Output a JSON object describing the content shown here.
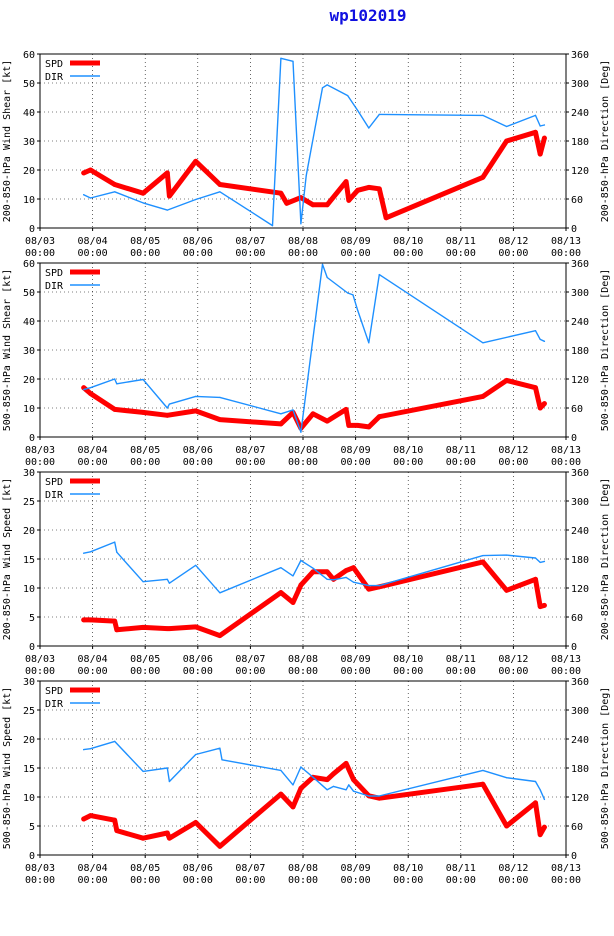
{
  "title": "wp102019",
  "colors": {
    "spd": "#ff0000",
    "dir": "#1e90ff",
    "axis": "#000000",
    "grid": "#000000",
    "title": "#1010e0"
  },
  "x_axis": {
    "ticks": [
      {
        "top": "08/03",
        "bottom": "00:00"
      },
      {
        "top": "08/04",
        "bottom": "00:00"
      },
      {
        "top": "08/05",
        "bottom": "00:00"
      },
      {
        "top": "08/06",
        "bottom": "00:00"
      },
      {
        "top": "08/07",
        "bottom": "00:00"
      },
      {
        "top": "08/08",
        "bottom": "00:00"
      },
      {
        "top": "08/09",
        "bottom": "00:00"
      },
      {
        "top": "08/10",
        "bottom": "00:00"
      },
      {
        "top": "08/11",
        "bottom": "00:00"
      },
      {
        "top": "08/12",
        "bottom": "00:00"
      },
      {
        "top": "08/13",
        "bottom": "00:00"
      }
    ],
    "range_days": [
      0,
      10
    ]
  },
  "chart_data": [
    {
      "type": "line",
      "ylabel_left": "200-850-hPa Wind Shear [kt]",
      "ylabel_right": "200-850-hPa Direction [Deg]",
      "ylim_left": [
        0,
        60
      ],
      "yticks_left": [
        "0",
        "10",
        "20",
        "30",
        "40",
        "50",
        "60"
      ],
      "ylim_right": [
        0,
        360
      ],
      "yticks_right": [
        "0",
        "60",
        "120",
        "180",
        "240",
        "300",
        "360"
      ],
      "legend": [
        "SPD",
        "DIR"
      ],
      "series": [
        {
          "name": "SPD",
          "axis": "left",
          "x": [
            0.83,
            0.96,
            1.42,
            1.96,
            2.42,
            2.46,
            2.96,
            3.42,
            4.58,
            4.69,
            4.96,
            5.19,
            5.46,
            5.82,
            5.87,
            6.04,
            6.25,
            6.45,
            6.58,
            8.42,
            8.87,
            9.42,
            9.51,
            9.59
          ],
          "y": [
            19,
            20,
            15,
            12,
            19,
            11,
            23,
            15,
            12,
            8.5,
            10.5,
            8,
            8,
            16,
            9.5,
            13,
            14,
            13.5,
            3.5,
            17.5,
            30,
            33,
            25.5,
            31
          ]
        },
        {
          "name": "DIR",
          "axis": "right",
          "x": [
            0.83,
            0.96,
            1.42,
            1.96,
            2.42,
            2.96,
            3.42,
            4.42,
            4.58,
            4.81,
            4.96,
            5.06,
            5.37,
            5.46,
            5.85,
            6.04,
            6.25,
            6.45,
            8.42,
            8.87,
            9.42,
            9.51,
            9.59
          ],
          "y": [
            69,
            62,
            75,
            52,
            37,
            59,
            75,
            5,
            351,
            345,
            9,
            108,
            290,
            296,
            274,
            243,
            207,
            235,
            233,
            210,
            233,
            211,
            213
          ]
        }
      ]
    },
    {
      "type": "line",
      "ylabel_left": "500-850-hPa Wind Shear [kt]",
      "ylabel_right": "500-850-hPa Direction [Deg]",
      "ylim_left": [
        0,
        60
      ],
      "yticks_left": [
        "0",
        "10",
        "20",
        "30",
        "40",
        "50",
        "60"
      ],
      "ylim_right": [
        0,
        360
      ],
      "yticks_right": [
        "0",
        "60",
        "120",
        "180",
        "240",
        "300",
        "360"
      ],
      "legend": [
        "SPD",
        "DIR"
      ],
      "series": [
        {
          "name": "SPD",
          "axis": "left",
          "x": [
            0.83,
            0.96,
            1.42,
            1.96,
            2.42,
            2.96,
            3.42,
            4.58,
            4.81,
            4.96,
            5.19,
            5.46,
            5.82,
            5.87,
            6.04,
            6.25,
            6.45,
            8.42,
            8.87,
            9.42,
            9.51,
            9.59
          ],
          "y": [
            17,
            15,
            9.5,
            8.5,
            7.5,
            9,
            6,
            4.5,
            8.5,
            3,
            8,
            5.5,
            9.5,
            4,
            4,
            3.5,
            7,
            14,
            19.5,
            17,
            10,
            11.5
          ]
        },
        {
          "name": "DIR",
          "axis": "right",
          "x": [
            0.83,
            0.96,
            1.42,
            1.46,
            1.96,
            2.42,
            2.46,
            2.96,
            3.42,
            4.58,
            4.81,
            4.96,
            5.37,
            5.46,
            5.85,
            5.95,
            6.04,
            6.25,
            6.45,
            8.42,
            9.42,
            9.51,
            9.59
          ],
          "y": [
            98,
            102,
            120,
            110,
            119,
            60,
            68,
            84,
            82,
            48,
            56,
            10,
            357,
            330,
            298,
            294,
            262,
            195,
            336,
            195,
            220,
            202,
            198
          ]
        }
      ]
    },
    {
      "type": "line",
      "ylabel_left": "200-850-hPa Wind Speed [kt]",
      "ylabel_right": "200-850-hPa Direction [Deg]",
      "ylim_left": [
        0,
        30
      ],
      "yticks_left": [
        "0",
        "5",
        "10",
        "15",
        "20",
        "25",
        "30"
      ],
      "ylim_right": [
        0,
        360
      ],
      "yticks_right": [
        "0",
        "60",
        "120",
        "180",
        "240",
        "300",
        "360"
      ],
      "legend": [
        "SPD",
        "DIR"
      ],
      "series": [
        {
          "name": "SPD",
          "axis": "left",
          "x": [
            0.83,
            0.96,
            1.42,
            1.46,
            1.96,
            2.42,
            2.46,
            2.96,
            3.42,
            4.58,
            4.81,
            4.96,
            5.19,
            5.46,
            5.58,
            5.82,
            5.96,
            6.25,
            6.45,
            8.42,
            8.87,
            9.42,
            9.51,
            9.59
          ],
          "y": [
            4.5,
            4.5,
            4.3,
            2.8,
            3.2,
            3.0,
            3.0,
            3.3,
            1.8,
            9.2,
            7.5,
            10.5,
            12.8,
            12.8,
            11.5,
            13,
            13.5,
            9.8,
            10.2,
            14.5,
            9.6,
            11.5,
            6.8,
            7
          ]
        },
        {
          "name": "DIR",
          "axis": "right",
          "x": [
            0.83,
            0.96,
            1.42,
            1.46,
            1.96,
            2.42,
            2.46,
            2.96,
            3.42,
            4.58,
            4.81,
            4.96,
            5.19,
            5.46,
            5.58,
            5.82,
            5.96,
            6.25,
            6.45,
            8.42,
            8.87,
            9.42,
            9.51,
            9.59
          ],
          "y": [
            192,
            195,
            215,
            194,
            133,
            138,
            130,
            167,
            110,
            162,
            145,
            177,
            161,
            138,
            137,
            142,
            132,
            125,
            125,
            187,
            188,
            182,
            173,
            175
          ]
        }
      ]
    },
    {
      "type": "line",
      "ylabel_left": "500-850-hPa Wind Speed [kt]",
      "ylabel_right": "500-850-hPa Direction [Deg]",
      "ylim_left": [
        0,
        30
      ],
      "yticks_left": [
        "0",
        "5",
        "10",
        "15",
        "20",
        "25",
        "30"
      ],
      "ylim_right": [
        0,
        360
      ],
      "yticks_right": [
        "0",
        "60",
        "120",
        "180",
        "240",
        "300",
        "360"
      ],
      "legend": [
        "SPD",
        "DIR"
      ],
      "series": [
        {
          "name": "SPD",
          "axis": "left",
          "x": [
            0.83,
            0.96,
            1.42,
            1.46,
            1.96,
            2.42,
            2.46,
            2.96,
            3.42,
            4.58,
            4.81,
            4.96,
            5.19,
            5.46,
            5.58,
            5.82,
            5.96,
            6.25,
            6.45,
            8.42,
            8.87,
            9.42,
            9.51,
            9.59
          ],
          "y": [
            6.2,
            6.8,
            6,
            4.2,
            2.9,
            3.8,
            2.9,
            5.6,
            1.5,
            10.5,
            8.3,
            11.5,
            13.4,
            13,
            14,
            15.8,
            13,
            10.2,
            9.8,
            12.2,
            5,
            9,
            3.5,
            4.8
          ]
        },
        {
          "name": "DIR",
          "axis": "right",
          "x": [
            0.83,
            0.96,
            1.42,
            1.96,
            2.42,
            2.46,
            2.96,
            3.42,
            3.46,
            4.58,
            4.81,
            4.96,
            5.19,
            5.46,
            5.58,
            5.82,
            5.87,
            5.96,
            6.25,
            6.45,
            8.42,
            8.87,
            9.42,
            9.51,
            9.59
          ],
          "y": [
            218,
            220,
            235,
            173,
            180,
            152,
            208,
            221,
            197,
            175,
            145,
            182,
            161,
            135,
            142,
            135,
            145,
            132,
            122,
            122,
            175,
            160,
            152,
            135,
            115
          ]
        }
      ]
    }
  ]
}
